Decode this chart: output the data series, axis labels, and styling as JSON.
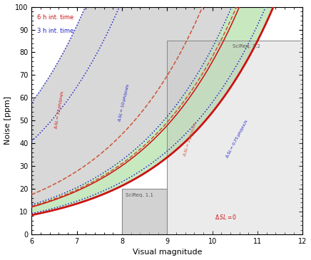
{
  "xlabel": "Visual magnitude",
  "ylabel": "Noise [ppm]",
  "xlim": [
    6,
    12
  ],
  "ylim": [
    0,
    100
  ],
  "xticks": [
    6,
    7,
    8,
    9,
    10,
    11,
    12
  ],
  "yticks": [
    0,
    10,
    20,
    30,
    40,
    50,
    60,
    70,
    80,
    90,
    100
  ],
  "bg_color": "#ffffff",
  "gray_fill_color": "#d8d8d8",
  "green_fill_color": "#c8e8c0",
  "scireq11_color": "#c8c8c8",
  "scireq12_color": "#c8e8c0",
  "red_curve_color": "#cc1111",
  "blue_curve_color": "#2222cc",
  "red_dashed_color": "#cc5533",
  "legend_6h_color": "#cc1111",
  "legend_3h_color": "#2222cc"
}
